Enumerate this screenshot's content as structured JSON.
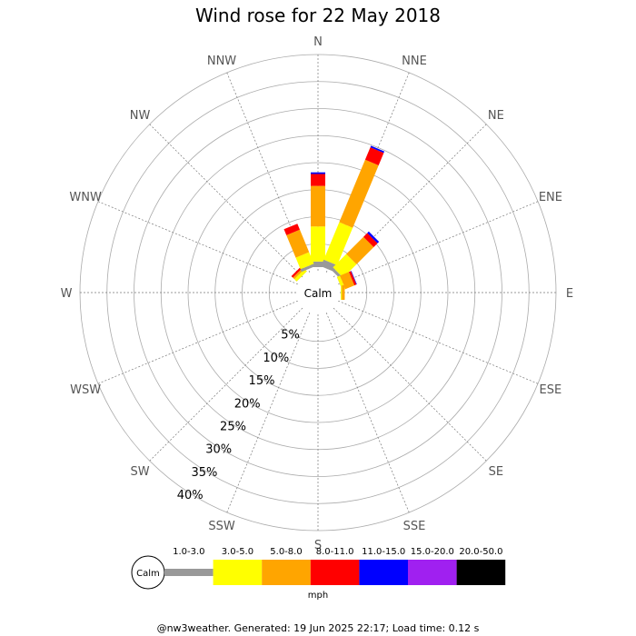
{
  "chart_data": {
    "type": "wind-rose",
    "title": "Wind rose for 22 May 2018",
    "directions": [
      "N",
      "NNE",
      "NE",
      "ENE",
      "E",
      "ESE",
      "SE",
      "SSE",
      "S",
      "SSW",
      "SW",
      "WSW",
      "W",
      "WNW",
      "NW",
      "NNW"
    ],
    "ring_labels": [
      "5%",
      "10%",
      "15%",
      "20%",
      "25%",
      "30%",
      "35%",
      "40%"
    ],
    "ring_values": [
      5,
      10,
      15,
      20,
      25,
      30,
      35,
      40
    ],
    "max_percent": 40,
    "center_label": "Calm",
    "speed_bins": [
      {
        "label": "1.0-3.0",
        "color": "#999999"
      },
      {
        "label": "3.0-5.0",
        "color": "#ffff00"
      },
      {
        "label": "5.0-8.0",
        "color": "#ffa500"
      },
      {
        "label": "8.0-11.0",
        "color": "#ff0000"
      },
      {
        "label": "11.0-15.0",
        "color": "#0000ff"
      },
      {
        "label": "15.0-20.0",
        "color": "#a020f0"
      },
      {
        "label": "20.0-50.0",
        "color": "#000000"
      }
    ],
    "units": "mph",
    "calm_percent": 3.4,
    "series": [
      {
        "direction": "N",
        "values": [
          1.7,
          6.5,
          7.5,
          2.2,
          0.3,
          0,
          0
        ]
      },
      {
        "direction": "NNE",
        "values": [
          2.0,
          7.5,
          12.5,
          2.5,
          0.3,
          0,
          0
        ]
      },
      {
        "direction": "NE",
        "values": [
          1.2,
          3.5,
          4.5,
          1.0,
          0.4,
          0,
          0
        ]
      },
      {
        "direction": "ENE",
        "values": [
          0.3,
          0.6,
          1.8,
          0.4,
          0.1,
          0,
          0
        ]
      },
      {
        "direction": "E",
        "values": [
          0.2,
          0.2,
          0.5,
          0,
          0,
          0,
          0
        ]
      },
      {
        "direction": "ESE",
        "values": [
          0,
          0,
          0,
          0,
          0,
          0,
          0
        ]
      },
      {
        "direction": "SE",
        "values": [
          0,
          0,
          0,
          0,
          0,
          0,
          0
        ]
      },
      {
        "direction": "SSE",
        "values": [
          0,
          0,
          0,
          0,
          0,
          0,
          0
        ]
      },
      {
        "direction": "S",
        "values": [
          0,
          0,
          0,
          0,
          0,
          0,
          0
        ]
      },
      {
        "direction": "SSW",
        "values": [
          0,
          0,
          0,
          0,
          0,
          0,
          0
        ]
      },
      {
        "direction": "SW",
        "values": [
          0,
          0,
          0,
          0,
          0,
          0,
          0
        ]
      },
      {
        "direction": "WSW",
        "values": [
          0,
          0,
          0,
          0,
          0,
          0,
          0
        ]
      },
      {
        "direction": "W",
        "values": [
          0,
          0,
          0,
          0,
          0,
          0,
          0
        ]
      },
      {
        "direction": "WNW",
        "values": [
          0,
          0,
          0,
          0,
          0,
          0,
          0
        ]
      },
      {
        "direction": "NW",
        "values": [
          0.2,
          0.6,
          0.4,
          0.4,
          0,
          0,
          0
        ]
      },
      {
        "direction": "NNW",
        "values": [
          1.2,
          2.3,
          4.5,
          1.2,
          0,
          0,
          0
        ]
      }
    ]
  },
  "footer": "@nw3weather. Generated: 19 Jun 2025 22:17; Load time: 0.12 s"
}
